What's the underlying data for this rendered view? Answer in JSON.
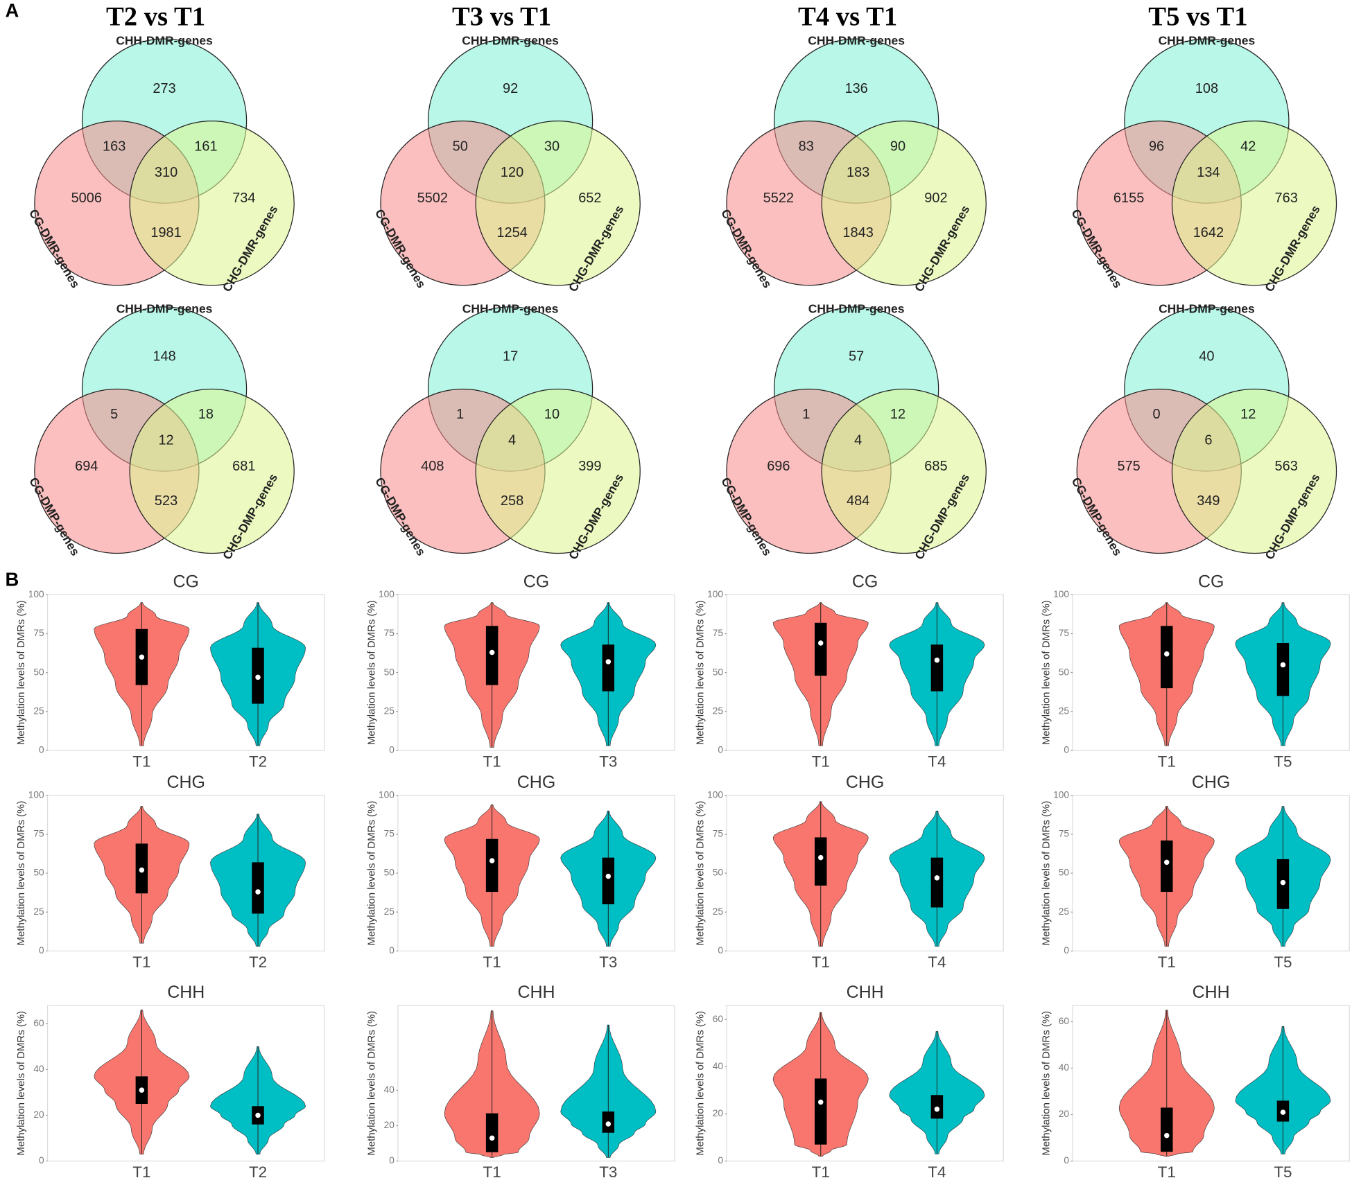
{
  "panel_labels": [
    "A",
    "B"
  ],
  "chart_data": [
    {
      "type": "venn",
      "title": "T2 vs T1",
      "set_labels": [
        "CHH-DMR-genes",
        "CG-DMR-genes",
        "CHG-DMR-genes"
      ],
      "colors": [
        "#7ff3d6",
        "#f78a8a",
        "#dcf58e"
      ],
      "region_values": [
        273,
        163,
        161,
        310,
        5006,
        734,
        1981
      ]
    },
    {
      "type": "venn",
      "title": "T3 vs T1",
      "set_labels": [
        "CHH-DMR-genes",
        "CG-DMR-genes",
        "CHG-DMR-genes"
      ],
      "colors": [
        "#7ff3d6",
        "#f78a8a",
        "#dcf58e"
      ],
      "region_values": [
        92,
        50,
        30,
        120,
        5502,
        652,
        1254
      ]
    },
    {
      "type": "venn",
      "title": "T4 vs T1",
      "set_labels": [
        "CHH-DMR-genes",
        "CG-DMR-genes",
        "CHG-DMR-genes"
      ],
      "colors": [
        "#7ff3d6",
        "#f78a8a",
        "#dcf58e"
      ],
      "region_values": [
        136,
        83,
        90,
        183,
        5522,
        902,
        1843
      ]
    },
    {
      "type": "venn",
      "title": "T5 vs T1",
      "set_labels": [
        "CHH-DMR-genes",
        "CG-DMR-genes",
        "CHG-DMR-genes"
      ],
      "colors": [
        "#7ff3d6",
        "#f78a8a",
        "#dcf58e"
      ],
      "region_values": [
        108,
        96,
        42,
        134,
        6155,
        763,
        1642
      ]
    },
    {
      "type": "venn",
      "set_labels": [
        "CHH-DMP-genes",
        "CG-DMP-genes",
        "CHG-DMP-genes"
      ],
      "colors": [
        "#7ff3d6",
        "#f78a8a",
        "#dcf58e"
      ],
      "region_values": [
        148,
        5,
        18,
        12,
        694,
        681,
        523
      ]
    },
    {
      "type": "venn",
      "set_labels": [
        "CHH-DMP-genes",
        "CG-DMP-genes",
        "CHG-DMP-genes"
      ],
      "colors": [
        "#7ff3d6",
        "#f78a8a",
        "#dcf58e"
      ],
      "region_values": [
        17,
        1,
        10,
        4,
        408,
        399,
        258
      ]
    },
    {
      "type": "venn",
      "set_labels": [
        "CHH-DMP-genes",
        "CG-DMP-genes",
        "CHG-DMP-genes"
      ],
      "colors": [
        "#7ff3d6",
        "#f78a8a",
        "#dcf58e"
      ],
      "region_values": [
        57,
        1,
        12,
        4,
        696,
        685,
        484
      ]
    },
    {
      "type": "venn",
      "set_labels": [
        "CHH-DMP-genes",
        "CG-DMP-genes",
        "CHG-DMP-genes"
      ],
      "colors": [
        "#7ff3d6",
        "#f78a8a",
        "#dcf58e"
      ],
      "region_values": [
        40,
        0,
        12,
        6,
        575,
        563,
        349
      ]
    },
    {
      "type": "violin",
      "title": "CG",
      "y_label": "Methylation levels of DMRs (%)",
      "categories": [
        "T1",
        "T2"
      ],
      "colors": [
        "#f8766d",
        "#00bfc4"
      ],
      "min": [
        3,
        3
      ],
      "q1": [
        42,
        30
      ],
      "median": [
        60,
        47
      ],
      "q3": [
        78,
        66
      ],
      "max": [
        95,
        95
      ],
      "ylim": [
        0,
        100
      ],
      "yticks": [
        0,
        25,
        50,
        75,
        100
      ]
    },
    {
      "type": "violin",
      "title": "CG",
      "y_label": "Methylation levels of DMRs (%)",
      "categories": [
        "T1",
        "T3"
      ],
      "colors": [
        "#f8766d",
        "#00bfc4"
      ],
      "min": [
        2,
        3
      ],
      "q1": [
        42,
        38
      ],
      "median": [
        63,
        57
      ],
      "q3": [
        80,
        68
      ],
      "max": [
        95,
        95
      ],
      "ylim": [
        0,
        100
      ],
      "yticks": [
        0,
        25,
        50,
        75,
        100
      ]
    },
    {
      "type": "violin",
      "title": "CG",
      "y_label": "Methylation levels of DMRs (%)",
      "categories": [
        "T1",
        "T4"
      ],
      "colors": [
        "#f8766d",
        "#00bfc4"
      ],
      "min": [
        3,
        3
      ],
      "q1": [
        48,
        38
      ],
      "median": [
        69,
        58
      ],
      "q3": [
        82,
        68
      ],
      "max": [
        95,
        95
      ],
      "ylim": [
        0,
        100
      ],
      "yticks": [
        0,
        25,
        50,
        75,
        100
      ]
    },
    {
      "type": "violin",
      "title": "CG",
      "y_label": "Methylation levels of DMRs (%)",
      "categories": [
        "T1",
        "T5"
      ],
      "colors": [
        "#f8766d",
        "#00bfc4"
      ],
      "min": [
        3,
        3
      ],
      "q1": [
        40,
        35
      ],
      "median": [
        62,
        55
      ],
      "q3": [
        80,
        69
      ],
      "max": [
        95,
        95
      ],
      "ylim": [
        0,
        100
      ],
      "yticks": [
        0,
        25,
        50,
        75,
        100
      ]
    },
    {
      "type": "violin",
      "title": "CHG",
      "y_label": "Methylation levels of DMRs (%)",
      "categories": [
        "T1",
        "T2"
      ],
      "colors": [
        "#f8766d",
        "#00bfc4"
      ],
      "min": [
        5,
        3
      ],
      "q1": [
        37,
        24
      ],
      "median": [
        52,
        38
      ],
      "q3": [
        69,
        57
      ],
      "max": [
        93,
        88
      ],
      "ylim": [
        0,
        100
      ],
      "yticks": [
        0,
        25,
        50,
        75,
        100
      ]
    },
    {
      "type": "violin",
      "title": "CHG",
      "y_label": "Methylation levels of DMRs (%)",
      "categories": [
        "T1",
        "T3"
      ],
      "colors": [
        "#f8766d",
        "#00bfc4"
      ],
      "min": [
        3,
        3
      ],
      "q1": [
        38,
        30
      ],
      "median": [
        58,
        48
      ],
      "q3": [
        72,
        60
      ],
      "max": [
        94,
        90
      ],
      "ylim": [
        0,
        100
      ],
      "yticks": [
        0,
        25,
        50,
        75,
        100
      ]
    },
    {
      "type": "violin",
      "title": "CHG",
      "y_label": "Methylation levels of DMRs (%)",
      "categories": [
        "T1",
        "T4"
      ],
      "colors": [
        "#f8766d",
        "#00bfc4"
      ],
      "min": [
        3,
        3
      ],
      "q1": [
        42,
        28
      ],
      "median": [
        60,
        47
      ],
      "q3": [
        73,
        60
      ],
      "max": [
        96,
        90
      ],
      "ylim": [
        0,
        100
      ],
      "yticks": [
        0,
        25,
        50,
        75,
        100
      ]
    },
    {
      "type": "violin",
      "title": "CHG",
      "y_label": "Methylation levels of DMRs (%)",
      "categories": [
        "T1",
        "T5"
      ],
      "colors": [
        "#f8766d",
        "#00bfc4"
      ],
      "min": [
        3,
        3
      ],
      "q1": [
        38,
        27
      ],
      "median": [
        57,
        44
      ],
      "q3": [
        71,
        59
      ],
      "max": [
        93,
        93
      ],
      "ylim": [
        0,
        100
      ],
      "yticks": [
        0,
        25,
        50,
        75,
        100
      ]
    },
    {
      "type": "violin",
      "title": "CHH",
      "y_label": "Methylation levels of DMRs (%)",
      "categories": [
        "T1",
        "T2"
      ],
      "colors": [
        "#f8766d",
        "#00bfc4"
      ],
      "min": [
        3,
        3
      ],
      "q1": [
        25,
        16
      ],
      "median": [
        31,
        20
      ],
      "q3": [
        37,
        24
      ],
      "max": [
        66,
        50
      ],
      "ylim": [
        0,
        68
      ],
      "yticks": [
        0,
        20,
        40,
        60
      ]
    },
    {
      "type": "violin",
      "title": "CHH",
      "y_label": "Methylation levels of DMRs (%)",
      "categories": [
        "T1",
        "T3"
      ],
      "colors": [
        "#f8766d",
        "#00bfc4"
      ],
      "min": [
        2,
        2
      ],
      "q1": [
        5,
        16
      ],
      "median": [
        13,
        21
      ],
      "q3": [
        27,
        28
      ],
      "max": [
        85,
        77
      ],
      "ylim": [
        0,
        88
      ],
      "yticks": [
        0,
        20,
        40
      ]
    },
    {
      "type": "violin",
      "title": "CHH",
      "y_label": "Methylation levels of DMRs (%)",
      "categories": [
        "T1",
        "T4"
      ],
      "colors": [
        "#f8766d",
        "#00bfc4"
      ],
      "min": [
        2,
        3
      ],
      "q1": [
        7,
        18
      ],
      "median": [
        25,
        22
      ],
      "q3": [
        35,
        28
      ],
      "max": [
        63,
        55
      ],
      "ylim": [
        0,
        66
      ],
      "yticks": [
        0,
        20,
        40,
        60
      ]
    },
    {
      "type": "violin",
      "title": "CHH",
      "y_label": "Methylation levels of DMRs (%)",
      "categories": [
        "T1",
        "T5"
      ],
      "colors": [
        "#f8766d",
        "#00bfc4"
      ],
      "min": [
        2,
        3
      ],
      "q1": [
        4,
        17
      ],
      "median": [
        11,
        21
      ],
      "q3": [
        23,
        26
      ],
      "max": [
        65,
        58
      ],
      "ylim": [
        0,
        67
      ],
      "yticks": [
        0,
        20,
        40,
        60
      ]
    }
  ]
}
